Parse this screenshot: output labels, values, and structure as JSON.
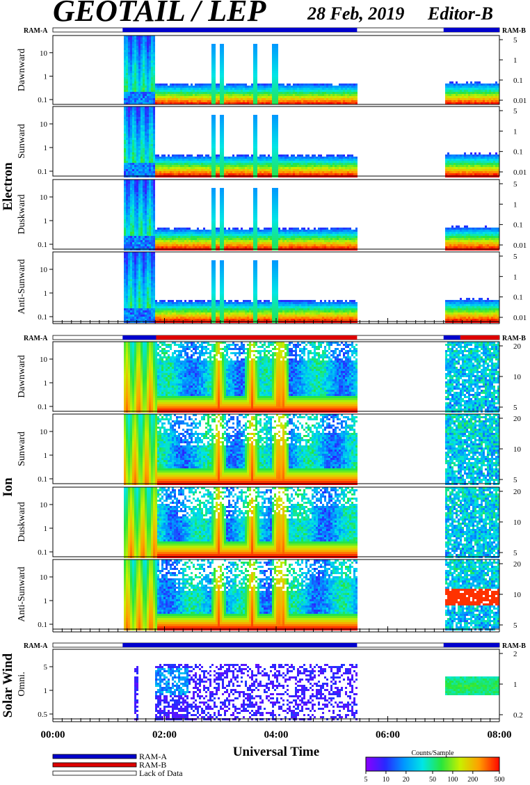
{
  "header": {
    "title": "GEOTAIL / LEP",
    "date": "28 Feb, 2019",
    "editor": "Editor-B"
  },
  "status_labels": {
    "left": "RAM-A",
    "right": "RAM-B"
  },
  "groups": [
    {
      "name": "Electron",
      "panels": [
        {
          "name": "Dawnward",
          "right_ticks": [
            "5",
            "1",
            "0.1",
            "0.01"
          ],
          "gap_level": 0.55
        },
        {
          "name": "Sunward",
          "right_ticks": [
            "5",
            "1",
            "0.1",
            "0.01"
          ],
          "gap_level": 0.5
        },
        {
          "name": "Duskward",
          "right_ticks": [
            "5",
            "1",
            "0.1",
            "0.01"
          ],
          "gap_level": 0.5
        },
        {
          "name": "Anti-Sunward",
          "right_ticks": [
            "5",
            "1",
            "0.1",
            "0.01"
          ],
          "gap_level": 0.45
        }
      ],
      "left_ticks": [
        "10",
        "1",
        "0.1"
      ],
      "status_segments": [
        {
          "start": 0.0,
          "end": 1.25,
          "state": "none"
        },
        {
          "start": 1.25,
          "end": 5.45,
          "state": "A"
        },
        {
          "start": 5.45,
          "end": 7.0,
          "state": "none"
        },
        {
          "start": 7.0,
          "end": 8.0,
          "state": "A"
        }
      ]
    },
    {
      "name": "Ion",
      "panels": [
        {
          "name": "Dawnward",
          "right_ticks": [
            "20",
            "10",
            "5"
          ]
        },
        {
          "name": "Sunward",
          "right_ticks": [
            "20",
            "10",
            "5"
          ]
        },
        {
          "name": "Duskward",
          "right_ticks": [
            "20",
            "10",
            "5"
          ]
        },
        {
          "name": "Anti-Sunward",
          "right_ticks": [
            "20",
            "10",
            "5"
          ]
        }
      ],
      "left_ticks": [
        "10",
        "1",
        "0.1"
      ],
      "status_segments": [
        {
          "start": 0.0,
          "end": 1.25,
          "state": "none"
        },
        {
          "start": 1.25,
          "end": 1.85,
          "state": "A"
        },
        {
          "start": 1.85,
          "end": 5.45,
          "state": "B"
        },
        {
          "start": 5.45,
          "end": 7.0,
          "state": "none"
        },
        {
          "start": 7.0,
          "end": 7.3,
          "state": "A"
        },
        {
          "start": 7.3,
          "end": 8.0,
          "state": "B"
        }
      ]
    },
    {
      "name": "Solar Wind",
      "panels": [
        {
          "name": "Omni.",
          "right_ticks": [
            "2",
            "1",
            "0.2"
          ]
        }
      ],
      "left_ticks": [
        "5",
        "1",
        "0.5"
      ],
      "status_segments": [
        {
          "start": 0.0,
          "end": 1.25,
          "state": "none"
        },
        {
          "start": 1.25,
          "end": 5.45,
          "state": "A"
        },
        {
          "start": 5.45,
          "end": 7.0,
          "state": "none"
        },
        {
          "start": 7.0,
          "end": 8.0,
          "state": "A"
        }
      ]
    }
  ],
  "x_axis": {
    "label": "Universal Time",
    "ticks": [
      "00:00",
      "02:00",
      "04:00",
      "06:00",
      "08:00"
    ],
    "range_hours": [
      0,
      8
    ]
  },
  "legend": [
    {
      "label": "RAM-A",
      "color": "#0000cc"
    },
    {
      "label": "RAM-B",
      "color": "#dd0000"
    },
    {
      "label": "Lack of Data",
      "color": "#ffffff"
    }
  ],
  "colorbar": {
    "title": "Counts/Sample",
    "ticks": [
      "5",
      "10",
      "20",
      "50",
      "100",
      "200",
      "500"
    ]
  },
  "chart_data": {
    "type": "heatmap",
    "title": "GEOTAIL / LEP",
    "xlabel": "Universal Time",
    "x_range_hours": [
      0,
      8
    ],
    "data_coverage": [
      {
        "start": "01:15",
        "end": "05:27"
      },
      {
        "start": "07:00",
        "end": "08:00"
      }
    ],
    "color_scale": {
      "label": "Counts/Sample",
      "min": 5,
      "max": 500,
      "log": true
    }
  }
}
